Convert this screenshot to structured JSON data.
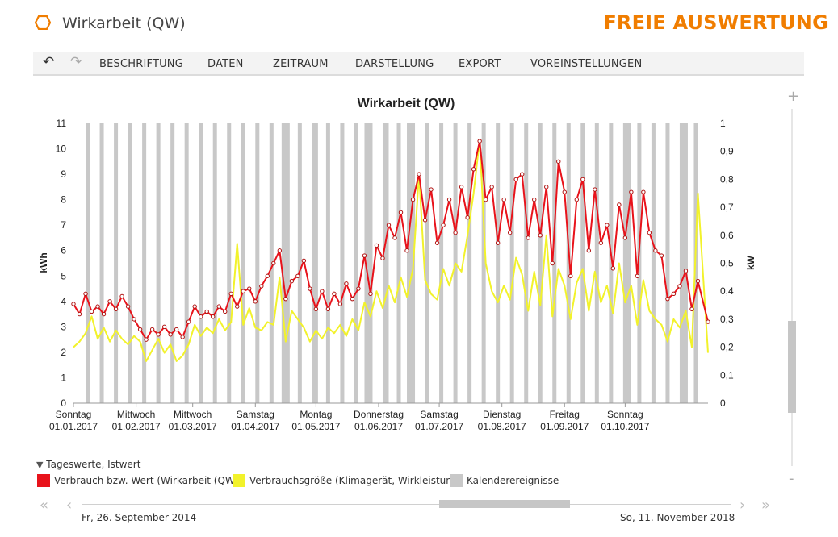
{
  "header": {
    "title": "Wirkarbeit (QW)",
    "brand": "FREIE AUSWERTUNG",
    "accent": "#f07d00"
  },
  "toolbar": {
    "undo_icon": "undo-arrow-icon",
    "redo_icon": "redo-arrow-icon",
    "items": [
      "BESCHRIFTUNG",
      "DATEN",
      "ZEITRAUM",
      "DARSTELLUNG",
      "EXPORT",
      "VOREINSTELLUNGEN"
    ]
  },
  "chart_data": {
    "type": "line",
    "title": "Wirkarbeit (QW)",
    "ylabel_left": "kWh",
    "ylabel_right": "kW",
    "ylim_left": [
      0,
      11
    ],
    "ylim_right": [
      0,
      1
    ],
    "yticks_left": [
      "0",
      "1",
      "2",
      "3",
      "4",
      "5",
      "6",
      "7",
      "8",
      "9",
      "10",
      "11"
    ],
    "yticks_right": [
      "0",
      "0,1",
      "0,2",
      "0,3",
      "0,4",
      "0,5",
      "0,6",
      "0,7",
      "0,8",
      "0,9",
      "1"
    ],
    "x_range": [
      "2017-01-01",
      "2017-11-11"
    ],
    "x_ticks": [
      {
        "date": "2017-01-01",
        "day": "Sonntag",
        "label": "01.01.2017"
      },
      {
        "date": "2017-02-01",
        "day": "Mittwoch",
        "label": "01.02.2017"
      },
      {
        "date": "2017-03-01",
        "day": "Mittwoch",
        "label": "01.03.2017"
      },
      {
        "date": "2017-04-01",
        "day": "Samstag",
        "label": "01.04.2017"
      },
      {
        "date": "2017-05-01",
        "day": "Montag",
        "label": "01.05.2017"
      },
      {
        "date": "2017-06-01",
        "day": "Donnerstag",
        "label": "01.06.2017"
      },
      {
        "date": "2017-07-01",
        "day": "Samstag",
        "label": "01.07.2017"
      },
      {
        "date": "2017-08-01",
        "day": "Dienstag",
        "label": "01.08.2017"
      },
      {
        "date": "2017-09-01",
        "day": "Freitag",
        "label": "01.09.2017"
      },
      {
        "date": "2017-10-01",
        "day": "Sonntag",
        "label": "01.10.2017"
      }
    ],
    "calendar_event_bands": [
      [
        "2017-01-07",
        "2017-01-08"
      ],
      [
        "2017-01-14",
        "2017-01-15"
      ],
      [
        "2017-01-21",
        "2017-01-22"
      ],
      [
        "2017-01-28",
        "2017-01-29"
      ],
      [
        "2017-02-04",
        "2017-02-05"
      ],
      [
        "2017-02-11",
        "2017-02-12"
      ],
      [
        "2017-02-18",
        "2017-02-19"
      ],
      [
        "2017-02-25",
        "2017-02-26"
      ],
      [
        "2017-03-04",
        "2017-03-05"
      ],
      [
        "2017-03-11",
        "2017-03-12"
      ],
      [
        "2017-03-18",
        "2017-03-19"
      ],
      [
        "2017-03-25",
        "2017-03-26"
      ],
      [
        "2017-04-01",
        "2017-04-02"
      ],
      [
        "2017-04-08",
        "2017-04-09"
      ],
      [
        "2017-04-14",
        "2017-04-17"
      ],
      [
        "2017-04-22",
        "2017-04-23"
      ],
      [
        "2017-04-29",
        "2017-05-01"
      ],
      [
        "2017-05-06",
        "2017-05-07"
      ],
      [
        "2017-05-13",
        "2017-05-14"
      ],
      [
        "2017-05-20",
        "2017-05-21"
      ],
      [
        "2017-05-25",
        "2017-05-28"
      ],
      [
        "2017-06-03",
        "2017-06-05"
      ],
      [
        "2017-06-10",
        "2017-06-11"
      ],
      [
        "2017-06-15",
        "2017-06-18"
      ],
      [
        "2017-06-24",
        "2017-06-25"
      ],
      [
        "2017-07-01",
        "2017-07-02"
      ],
      [
        "2017-07-08",
        "2017-07-09"
      ],
      [
        "2017-07-15",
        "2017-07-16"
      ],
      [
        "2017-07-22",
        "2017-07-23"
      ],
      [
        "2017-07-29",
        "2017-07-30"
      ],
      [
        "2017-08-05",
        "2017-08-06"
      ],
      [
        "2017-08-12",
        "2017-08-13"
      ],
      [
        "2017-08-19",
        "2017-08-20"
      ],
      [
        "2017-08-26",
        "2017-08-27"
      ],
      [
        "2017-09-02",
        "2017-09-03"
      ],
      [
        "2017-09-09",
        "2017-09-10"
      ],
      [
        "2017-09-16",
        "2017-09-17"
      ],
      [
        "2017-09-23",
        "2017-09-24"
      ],
      [
        "2017-09-30",
        "2017-10-03"
      ],
      [
        "2017-10-07",
        "2017-10-08"
      ],
      [
        "2017-10-14",
        "2017-10-15"
      ],
      [
        "2017-10-21",
        "2017-10-22"
      ],
      [
        "2017-10-28",
        "2017-10-31"
      ],
      [
        "2017-11-04",
        "2017-11-05"
      ]
    ],
    "series": [
      {
        "name": "Verbrauch bzw. Wert (Wirkarbeit (QW))",
        "color": "#e8131b",
        "axis": "left",
        "points": [
          [
            "2017-01-01",
            3.9
          ],
          [
            "2017-01-04",
            3.5
          ],
          [
            "2017-01-07",
            4.3
          ],
          [
            "2017-01-10",
            3.6
          ],
          [
            "2017-01-13",
            3.8
          ],
          [
            "2017-01-16",
            3.5
          ],
          [
            "2017-01-19",
            4.0
          ],
          [
            "2017-01-22",
            3.7
          ],
          [
            "2017-01-25",
            4.2
          ],
          [
            "2017-01-28",
            3.8
          ],
          [
            "2017-01-31",
            3.3
          ],
          [
            "2017-02-03",
            2.9
          ],
          [
            "2017-02-06",
            2.5
          ],
          [
            "2017-02-09",
            2.9
          ],
          [
            "2017-02-12",
            2.7
          ],
          [
            "2017-02-15",
            3.0
          ],
          [
            "2017-02-18",
            2.7
          ],
          [
            "2017-02-21",
            2.9
          ],
          [
            "2017-02-24",
            2.6
          ],
          [
            "2017-02-27",
            3.2
          ],
          [
            "2017-03-02",
            3.8
          ],
          [
            "2017-03-05",
            3.4
          ],
          [
            "2017-03-08",
            3.6
          ],
          [
            "2017-03-11",
            3.4
          ],
          [
            "2017-03-14",
            3.8
          ],
          [
            "2017-03-17",
            3.6
          ],
          [
            "2017-03-20",
            4.3
          ],
          [
            "2017-03-23",
            3.8
          ],
          [
            "2017-03-26",
            4.4
          ],
          [
            "2017-03-29",
            4.5
          ],
          [
            "2017-04-01",
            4.0
          ],
          [
            "2017-04-04",
            4.6
          ],
          [
            "2017-04-07",
            5.0
          ],
          [
            "2017-04-10",
            5.5
          ],
          [
            "2017-04-13",
            6.0
          ],
          [
            "2017-04-16",
            4.1
          ],
          [
            "2017-04-19",
            4.8
          ],
          [
            "2017-04-22",
            5.0
          ],
          [
            "2017-04-25",
            5.6
          ],
          [
            "2017-04-28",
            4.5
          ],
          [
            "2017-05-01",
            3.7
          ],
          [
            "2017-05-04",
            4.4
          ],
          [
            "2017-05-07",
            3.7
          ],
          [
            "2017-05-10",
            4.3
          ],
          [
            "2017-05-13",
            3.9
          ],
          [
            "2017-05-16",
            4.7
          ],
          [
            "2017-05-19",
            4.1
          ],
          [
            "2017-05-22",
            4.5
          ],
          [
            "2017-05-25",
            5.8
          ],
          [
            "2017-05-28",
            4.3
          ],
          [
            "2017-05-31",
            6.2
          ],
          [
            "2017-06-03",
            5.7
          ],
          [
            "2017-06-06",
            7.0
          ],
          [
            "2017-06-09",
            6.5
          ],
          [
            "2017-06-12",
            7.5
          ],
          [
            "2017-06-15",
            6.0
          ],
          [
            "2017-06-18",
            8.0
          ],
          [
            "2017-06-21",
            9.0
          ],
          [
            "2017-06-24",
            7.2
          ],
          [
            "2017-06-27",
            8.4
          ],
          [
            "2017-06-30",
            6.3
          ],
          [
            "2017-07-03",
            7.0
          ],
          [
            "2017-07-06",
            8.0
          ],
          [
            "2017-07-09",
            6.7
          ],
          [
            "2017-07-12",
            8.5
          ],
          [
            "2017-07-15",
            7.3
          ],
          [
            "2017-07-18",
            9.2
          ],
          [
            "2017-07-21",
            10.3
          ],
          [
            "2017-07-24",
            8.0
          ],
          [
            "2017-07-27",
            8.5
          ],
          [
            "2017-07-30",
            6.3
          ],
          [
            "2017-08-02",
            8.0
          ],
          [
            "2017-08-05",
            6.7
          ],
          [
            "2017-08-08",
            8.8
          ],
          [
            "2017-08-11",
            9.0
          ],
          [
            "2017-08-14",
            6.5
          ],
          [
            "2017-08-17",
            8.0
          ],
          [
            "2017-08-20",
            6.6
          ],
          [
            "2017-08-23",
            8.5
          ],
          [
            "2017-08-26",
            5.5
          ],
          [
            "2017-08-29",
            9.5
          ],
          [
            "2017-09-01",
            8.3
          ],
          [
            "2017-09-04",
            5.0
          ],
          [
            "2017-09-07",
            8.0
          ],
          [
            "2017-09-10",
            8.8
          ],
          [
            "2017-09-13",
            6.0
          ],
          [
            "2017-09-16",
            8.4
          ],
          [
            "2017-09-19",
            6.3
          ],
          [
            "2017-09-22",
            7.0
          ],
          [
            "2017-09-25",
            5.3
          ],
          [
            "2017-09-28",
            7.8
          ],
          [
            "2017-10-01",
            6.5
          ],
          [
            "2017-10-04",
            8.3
          ],
          [
            "2017-10-07",
            5.0
          ],
          [
            "2017-10-10",
            8.3
          ],
          [
            "2017-10-13",
            6.7
          ],
          [
            "2017-10-16",
            6.0
          ],
          [
            "2017-10-19",
            5.8
          ],
          [
            "2017-10-22",
            4.1
          ],
          [
            "2017-10-25",
            4.3
          ],
          [
            "2017-10-28",
            4.6
          ],
          [
            "2017-10-31",
            5.2
          ],
          [
            "2017-11-03",
            3.7
          ],
          [
            "2017-11-06",
            4.8
          ],
          [
            "2017-11-11",
            3.2
          ]
        ]
      },
      {
        "name": "Verbrauchsgröße (Klimagerät, Wirkleistung)",
        "color": "#f2f22b",
        "axis": "right",
        "points": [
          [
            "2017-01-01",
            0.2
          ],
          [
            "2017-01-04",
            0.22
          ],
          [
            "2017-01-07",
            0.25
          ],
          [
            "2017-01-10",
            0.31
          ],
          [
            "2017-01-13",
            0.23
          ],
          [
            "2017-01-16",
            0.27
          ],
          [
            "2017-01-19",
            0.22
          ],
          [
            "2017-01-22",
            0.26
          ],
          [
            "2017-01-25",
            0.23
          ],
          [
            "2017-01-28",
            0.21
          ],
          [
            "2017-01-31",
            0.24
          ],
          [
            "2017-02-03",
            0.22
          ],
          [
            "2017-02-06",
            0.15
          ],
          [
            "2017-02-09",
            0.19
          ],
          [
            "2017-02-12",
            0.23
          ],
          [
            "2017-02-15",
            0.18
          ],
          [
            "2017-02-18",
            0.21
          ],
          [
            "2017-02-21",
            0.15
          ],
          [
            "2017-02-24",
            0.17
          ],
          [
            "2017-02-27",
            0.21
          ],
          [
            "2017-03-02",
            0.28
          ],
          [
            "2017-03-05",
            0.24
          ],
          [
            "2017-03-08",
            0.27
          ],
          [
            "2017-03-11",
            0.25
          ],
          [
            "2017-03-14",
            0.3
          ],
          [
            "2017-03-17",
            0.26
          ],
          [
            "2017-03-20",
            0.29
          ],
          [
            "2017-03-23",
            0.57
          ],
          [
            "2017-03-26",
            0.28
          ],
          [
            "2017-03-29",
            0.34
          ],
          [
            "2017-04-01",
            0.27
          ],
          [
            "2017-04-04",
            0.26
          ],
          [
            "2017-04-07",
            0.29
          ],
          [
            "2017-04-10",
            0.28
          ],
          [
            "2017-04-13",
            0.45
          ],
          [
            "2017-04-16",
            0.22
          ],
          [
            "2017-04-19",
            0.33
          ],
          [
            "2017-04-22",
            0.3
          ],
          [
            "2017-04-25",
            0.27
          ],
          [
            "2017-04-28",
            0.22
          ],
          [
            "2017-05-01",
            0.26
          ],
          [
            "2017-05-04",
            0.23
          ],
          [
            "2017-05-07",
            0.27
          ],
          [
            "2017-05-10",
            0.25
          ],
          [
            "2017-05-13",
            0.28
          ],
          [
            "2017-05-16",
            0.24
          ],
          [
            "2017-05-19",
            0.3
          ],
          [
            "2017-05-22",
            0.26
          ],
          [
            "2017-05-25",
            0.36
          ],
          [
            "2017-05-28",
            0.31
          ],
          [
            "2017-05-31",
            0.4
          ],
          [
            "2017-06-03",
            0.34
          ],
          [
            "2017-06-06",
            0.42
          ],
          [
            "2017-06-09",
            0.36
          ],
          [
            "2017-06-12",
            0.45
          ],
          [
            "2017-06-15",
            0.38
          ],
          [
            "2017-06-18",
            0.48
          ],
          [
            "2017-06-21",
            0.82
          ],
          [
            "2017-06-24",
            0.44
          ],
          [
            "2017-06-27",
            0.39
          ],
          [
            "2017-06-30",
            0.37
          ],
          [
            "2017-07-03",
            0.48
          ],
          [
            "2017-07-06",
            0.42
          ],
          [
            "2017-07-09",
            0.5
          ],
          [
            "2017-07-12",
            0.47
          ],
          [
            "2017-07-15",
            0.6
          ],
          [
            "2017-07-18",
            0.75
          ],
          [
            "2017-07-21",
            0.94
          ],
          [
            "2017-07-24",
            0.5
          ],
          [
            "2017-07-27",
            0.4
          ],
          [
            "2017-07-30",
            0.36
          ],
          [
            "2017-08-02",
            0.42
          ],
          [
            "2017-08-05",
            0.37
          ],
          [
            "2017-08-08",
            0.52
          ],
          [
            "2017-08-11",
            0.46
          ],
          [
            "2017-08-14",
            0.33
          ],
          [
            "2017-08-17",
            0.47
          ],
          [
            "2017-08-20",
            0.35
          ],
          [
            "2017-08-23",
            0.6
          ],
          [
            "2017-08-26",
            0.31
          ],
          [
            "2017-08-29",
            0.48
          ],
          [
            "2017-09-01",
            0.42
          ],
          [
            "2017-09-04",
            0.3
          ],
          [
            "2017-09-07",
            0.43
          ],
          [
            "2017-09-10",
            0.48
          ],
          [
            "2017-09-13",
            0.33
          ],
          [
            "2017-09-16",
            0.47
          ],
          [
            "2017-09-19",
            0.36
          ],
          [
            "2017-09-22",
            0.42
          ],
          [
            "2017-09-25",
            0.32
          ],
          [
            "2017-09-28",
            0.5
          ],
          [
            "2017-10-01",
            0.36
          ],
          [
            "2017-10-04",
            0.42
          ],
          [
            "2017-10-07",
            0.28
          ],
          [
            "2017-10-10",
            0.44
          ],
          [
            "2017-10-13",
            0.33
          ],
          [
            "2017-10-16",
            0.3
          ],
          [
            "2017-10-19",
            0.28
          ],
          [
            "2017-10-22",
            0.22
          ],
          [
            "2017-10-25",
            0.3
          ],
          [
            "2017-10-28",
            0.27
          ],
          [
            "2017-10-31",
            0.33
          ],
          [
            "2017-11-03",
            0.2
          ],
          [
            "2017-11-06",
            0.75
          ],
          [
            "2017-11-11",
            0.18
          ]
        ]
      }
    ],
    "legend": {
      "toggle_label": "Tageswerte, Istwert",
      "entries": [
        {
          "label": "Verbrauch bzw. Wert (Wirkarbeit (QW))",
          "color": "#e8131b"
        },
        {
          "label": "Verbrauchsgröße (Klimagerät, Wirkleistung)",
          "color": "#f2f22b"
        },
        {
          "label": "Kalenderereignisse",
          "color": "#c8c8c8"
        }
      ]
    },
    "grid": false,
    "legend_position": "bottom-left"
  },
  "navigator": {
    "start_label": "Fr, 26. September 2014",
    "end_label": "So, 11. November 2018"
  }
}
